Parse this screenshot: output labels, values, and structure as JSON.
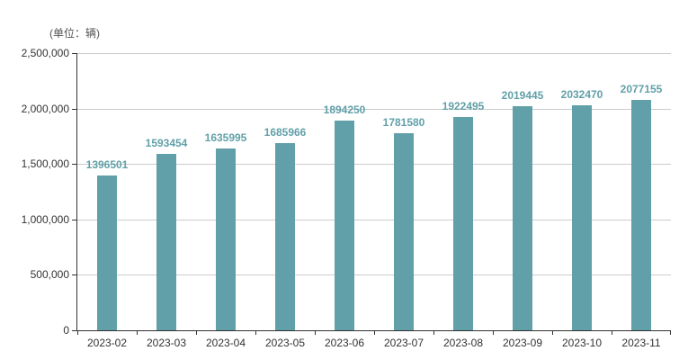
{
  "chart_data": {
    "type": "bar",
    "title": "",
    "unit_label": "(单位：辆)",
    "categories": [
      "2023-02",
      "2023-03",
      "2023-04",
      "2023-05",
      "2023-06",
      "2023-07",
      "2023-08",
      "2023-09",
      "2023-10",
      "2023-11"
    ],
    "values": [
      1396501,
      1593454,
      1635995,
      1685966,
      1894250,
      1781580,
      1922495,
      2019445,
      2032470,
      2077155
    ],
    "xlabel": "",
    "ylabel": "",
    "ylim": [
      0,
      2500000
    ],
    "yticks": [
      {
        "value": 0,
        "label": "0"
      },
      {
        "value": 500000,
        "label": "500,000"
      },
      {
        "value": 1000000,
        "label": "1,000,000"
      },
      {
        "value": 1500000,
        "label": "1,500,000"
      },
      {
        "value": 2000000,
        "label": "2,000,000"
      },
      {
        "value": 2500000,
        "label": "2,500,000"
      }
    ],
    "grid": true,
    "legend_position": "none",
    "colors": {
      "bar": "#61a0a8",
      "value_label": "#61a0a8",
      "gridline": "#cccccc",
      "axis": "#333333",
      "axis_label": "#333333",
      "unit_label": "#555555",
      "background": "#ffffff"
    }
  }
}
